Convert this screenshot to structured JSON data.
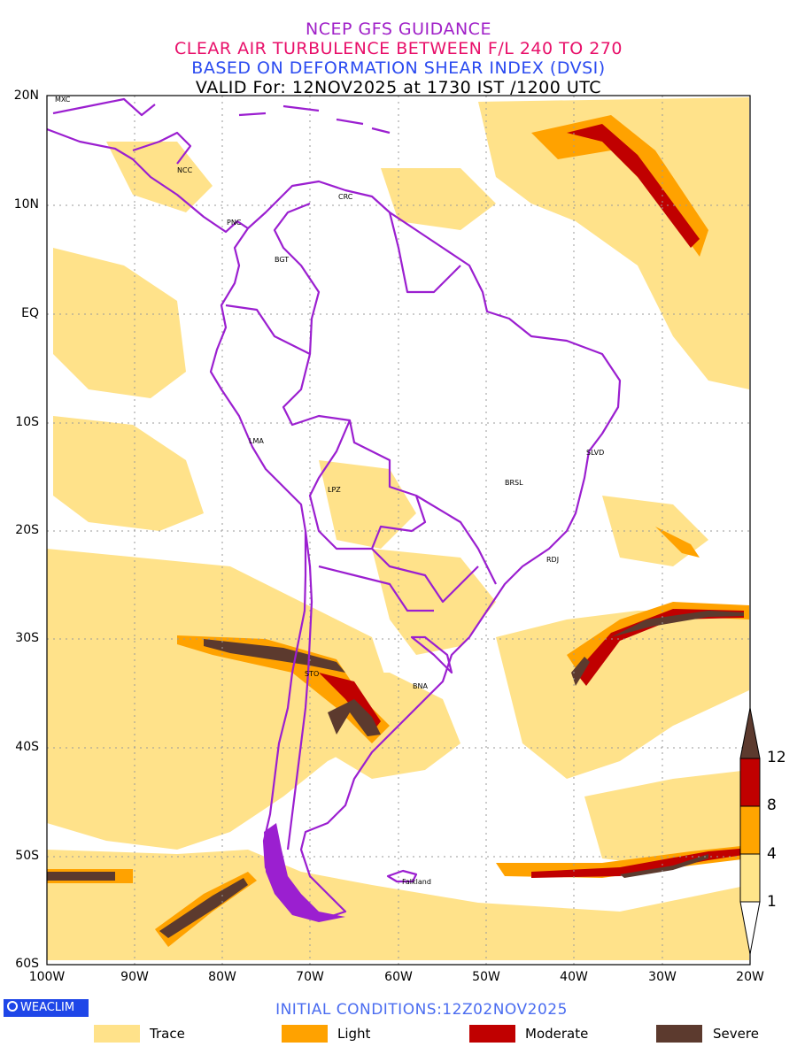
{
  "titles": {
    "line1": "NCEP GFS GUIDANCE",
    "line2": "CLEAR AIR TURBULENCE BETWEEN F/L 240 TO 270",
    "line3": "BASED ON DEFORMATION SHEAR INDEX (DVSI)",
    "line4": "VALID For: 12NOV2025 at 1730 IST /1200 UTC"
  },
  "axes": {
    "lat_labels": [
      "20N",
      "10N",
      "EQ",
      "10S",
      "20S",
      "30S",
      "40S",
      "50S",
      "60S"
    ],
    "lon_labels": [
      "100W",
      "90W",
      "80W",
      "70W",
      "60W",
      "50W",
      "40W",
      "30W",
      "20W"
    ]
  },
  "cities": [
    {
      "code": "MXC"
    },
    {
      "code": "NCC"
    },
    {
      "code": "CRC"
    },
    {
      "code": "PNC"
    },
    {
      "code": "BGT"
    },
    {
      "code": "LMA"
    },
    {
      "code": "LPZ"
    },
    {
      "code": "BRSL"
    },
    {
      "code": "SLVD"
    },
    {
      "code": "RDJ"
    },
    {
      "code": "STO"
    },
    {
      "code": "BNA"
    },
    {
      "code": "Falkland"
    }
  ],
  "colorbar": {
    "ticks": [
      "12",
      "8",
      "4",
      "1"
    ],
    "colors": [
      "#5c3a2e",
      "#c00000",
      "#ffa500",
      "#ffe58a",
      "#ffffff"
    ]
  },
  "legend": [
    {
      "label": "Trace",
      "color": "#ffe28a"
    },
    {
      "label": "Light",
      "color": "#ffa200"
    },
    {
      "label": "Moderate",
      "color": "#c00000"
    },
    {
      "label": "Severe",
      "color": "#5c3a2e"
    }
  ],
  "branding": "WEACLIM",
  "footer": "INITIAL CONDITIONS:12Z02NOV2025",
  "colors": {
    "trace": "#ffe28a",
    "light": "#ffa200",
    "moderate": "#c00000",
    "severe": "#5c3a2e",
    "boundary": "#9b1fd0"
  }
}
